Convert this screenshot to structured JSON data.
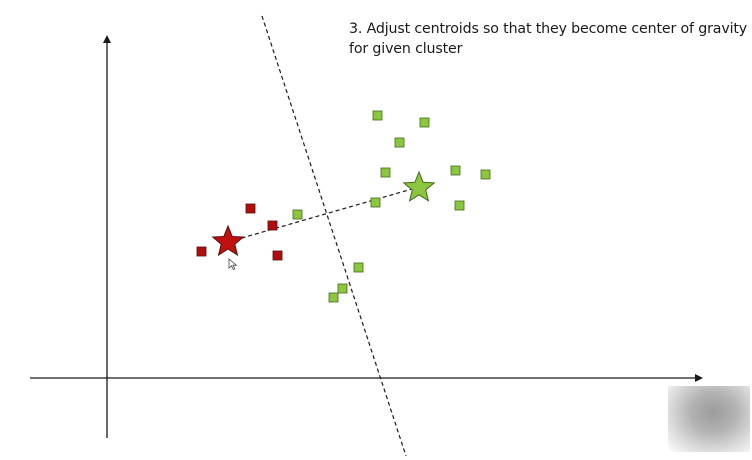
{
  "caption": {
    "line1": "3. Adjust centroids so that they become center of gravity",
    "line2": "for given cluster"
  },
  "colors": {
    "red_cluster": "#b00d0d",
    "green_cluster": "#8cc63f",
    "axis": "#1a1a1a",
    "divider": "#1a1a1a"
  },
  "icons": {
    "red_centroid": "star",
    "green_centroid": "star",
    "cursor": "mouse-pointer-icon"
  }
}
